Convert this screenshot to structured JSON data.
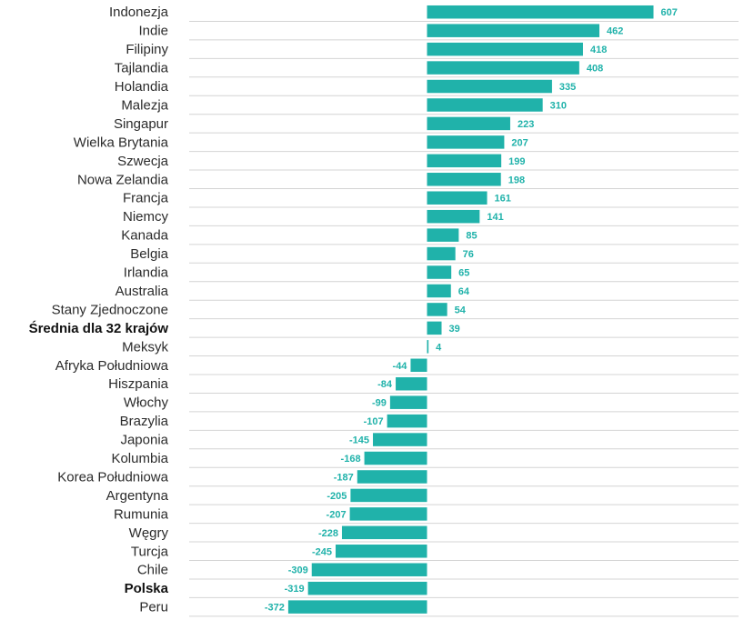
{
  "chart_data": {
    "type": "bar",
    "orientation": "horizontal",
    "title": "",
    "xlabel": "",
    "ylabel": "",
    "xlim": [
      -372,
      607
    ],
    "grid": true,
    "bar_color": "#20b2aa",
    "label_color": "#20b2aa",
    "categories": [
      "Indonezja",
      "Indie",
      "Filipiny",
      "Tajlandia",
      "Holandia",
      "Malezja",
      "Singapur",
      "Wielka Brytania",
      "Szwecja",
      "Nowa Zelandia",
      "Francja",
      "Niemcy",
      "Kanada",
      "Belgia",
      "Irlandia",
      "Australia",
      "Stany Zjednoczone",
      "Średnia dla 32 krajów",
      "Meksyk",
      "Afryka Południowa",
      "Hiszpania",
      "Włochy",
      "Brazylia",
      "Japonia",
      "Kolumbia",
      "Korea Południowa",
      "Argentyna",
      "Rumunia",
      "Węgry",
      "Turcja",
      "Chile",
      "Polska",
      "Peru"
    ],
    "values": [
      607,
      462,
      418,
      408,
      335,
      310,
      223,
      207,
      199,
      198,
      161,
      141,
      85,
      76,
      65,
      64,
      54,
      39,
      4,
      -44,
      -84,
      -99,
      -107,
      -145,
      -168,
      -187,
      -205,
      -207,
      -228,
      -245,
      -309,
      -319,
      -372
    ],
    "value_labels": [
      "607",
      "462",
      "418",
      "408",
      "335",
      "310",
      "223",
      "207",
      "199",
      "198",
      "161",
      "141",
      "85",
      "76",
      "65",
      "64",
      "54",
      "39",
      "4",
      "-44",
      "-84",
      "-99",
      "-107",
      "-145",
      "-168",
      "-187",
      "-205",
      "-207",
      "-228",
      "-245",
      "-309",
      "-319",
      "-372"
    ],
    "bold_categories": [
      "Średnia dla 32 krajów",
      "Polska"
    ]
  }
}
